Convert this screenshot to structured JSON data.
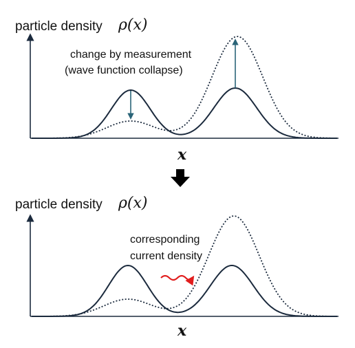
{
  "colors": {
    "curve": "#1b2a3d",
    "arrow_measure": "#2a6478",
    "current_wave": "#e11d1d",
    "transition_arrow": "#000000"
  },
  "top_panel": {
    "ylabel_text": "particle density",
    "ylabel_math": "ρ(x)",
    "xlabel": "x",
    "annotation_line1": "change by measurement",
    "annotation_line2": "(wave function collapse)"
  },
  "bottom_panel": {
    "ylabel_text": "particle density",
    "ylabel_math": "ρ(x)",
    "xlabel": "x",
    "annotation_line1": "corresponding",
    "annotation_line2": "current density"
  },
  "icons": {
    "transition": "down-arrow-icon",
    "current": "wavy-arrow-icon"
  }
}
